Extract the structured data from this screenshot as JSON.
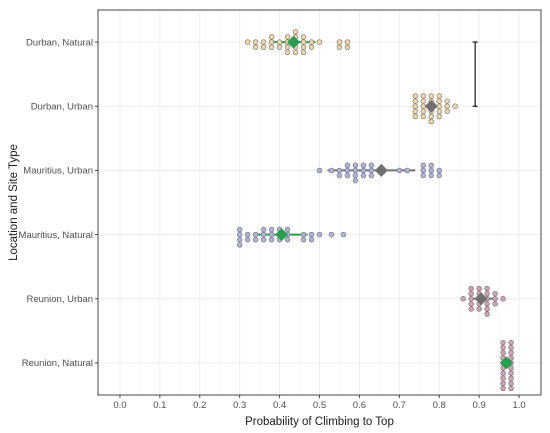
{
  "chart_data": {
    "type": "scatter",
    "title": "",
    "xlabel": "Probability of Climbing to Top",
    "ylabel": "Location and Site Type",
    "xlim": [
      -0.055,
      1.055
    ],
    "x_ticks": [
      "0.0",
      "0.1",
      "0.2",
      "0.3",
      "0.4",
      "0.5",
      "0.6",
      "0.7",
      "0.8",
      "0.9",
      "1.0"
    ],
    "x_tick_values": [
      0.0,
      0.1,
      0.2,
      0.3,
      0.4,
      0.5,
      0.6,
      0.7,
      0.8,
      0.9,
      1.0
    ],
    "categories": [
      "Durban, Natural",
      "Durban, Urban",
      "Mauritius, Urban",
      "Mauritius, Natural",
      "Reunion, Urban",
      "Reunion, Natural"
    ],
    "grid": true,
    "legend": "none",
    "colors": {
      "natural_mean": "#2a9d4f",
      "urban_mean": "#707070",
      "Durban": "#f2d7a8",
      "Mauritius": "#aeb6dd",
      "Reunion": "#d4a0b8",
      "dot_stroke": "#6e6e6e",
      "bracket": "#000000"
    },
    "series": [
      {
        "category": "Durban, Natural",
        "color_key": "Durban",
        "mean": 0.435,
        "ci": [
          0.385,
          0.49
        ],
        "points": [
          [
            0.32,
            0
          ],
          [
            0.34,
            0
          ],
          [
            0.34,
            1
          ],
          [
            0.36,
            0
          ],
          [
            0.36,
            1
          ],
          [
            0.38,
            0
          ],
          [
            0.38,
            -1
          ],
          [
            0.38,
            1
          ],
          [
            0.4,
            0
          ],
          [
            0.4,
            1
          ],
          [
            0.42,
            0
          ],
          [
            0.42,
            -1
          ],
          [
            0.42,
            1
          ],
          [
            0.42,
            2
          ],
          [
            0.44,
            0
          ],
          [
            0.44,
            -1
          ],
          [
            0.44,
            1
          ],
          [
            0.44,
            -2
          ],
          [
            0.44,
            2
          ],
          [
            0.46,
            0
          ],
          [
            0.46,
            -1
          ],
          [
            0.46,
            1
          ],
          [
            0.46,
            2
          ],
          [
            0.48,
            0
          ],
          [
            0.48,
            1
          ],
          [
            0.5,
            0
          ],
          [
            0.55,
            0
          ],
          [
            0.55,
            1
          ],
          [
            0.57,
            0
          ],
          [
            0.57,
            1
          ]
        ]
      },
      {
        "category": "Durban, Urban",
        "color_key": "Durban",
        "mean": 0.78,
        "ci": [
          0.765,
          0.795
        ],
        "points": [
          [
            0.74,
            0
          ],
          [
            0.74,
            -1
          ],
          [
            0.74,
            1
          ],
          [
            0.74,
            -2
          ],
          [
            0.74,
            2
          ],
          [
            0.76,
            0
          ],
          [
            0.76,
            -1
          ],
          [
            0.76,
            1
          ],
          [
            0.76,
            -2
          ],
          [
            0.76,
            2
          ],
          [
            0.78,
            0
          ],
          [
            0.78,
            -1
          ],
          [
            0.78,
            1
          ],
          [
            0.78,
            -2
          ],
          [
            0.78,
            2
          ],
          [
            0.78,
            3
          ],
          [
            0.8,
            0
          ],
          [
            0.8,
            -1
          ],
          [
            0.8,
            1
          ],
          [
            0.8,
            -2
          ],
          [
            0.8,
            2
          ],
          [
            0.82,
            0
          ],
          [
            0.82,
            -1
          ],
          [
            0.82,
            1
          ],
          [
            0.84,
            0
          ]
        ]
      },
      {
        "category": "Mauritius, Urban",
        "color_key": "Mauritius",
        "mean": 0.655,
        "ci": [
          0.52,
          0.74
        ],
        "points": [
          [
            0.5,
            0
          ],
          [
            0.53,
            0
          ],
          [
            0.55,
            0
          ],
          [
            0.55,
            1
          ],
          [
            0.57,
            0
          ],
          [
            0.57,
            -1
          ],
          [
            0.57,
            1
          ],
          [
            0.59,
            0
          ],
          [
            0.59,
            -1
          ],
          [
            0.59,
            1
          ],
          [
            0.59,
            2
          ],
          [
            0.61,
            0
          ],
          [
            0.61,
            -1
          ],
          [
            0.61,
            1
          ],
          [
            0.63,
            0
          ],
          [
            0.63,
            -1
          ],
          [
            0.63,
            1
          ],
          [
            0.7,
            0
          ],
          [
            0.72,
            0
          ],
          [
            0.76,
            0
          ],
          [
            0.76,
            -1
          ],
          [
            0.76,
            1
          ],
          [
            0.78,
            0
          ],
          [
            0.78,
            -1
          ],
          [
            0.78,
            1
          ],
          [
            0.8,
            0
          ],
          [
            0.8,
            1
          ]
        ]
      },
      {
        "category": "Mauritius, Natural",
        "color_key": "Mauritius",
        "mean": 0.405,
        "ci": [
          0.335,
          0.47
        ],
        "points": [
          [
            0.3,
            0
          ],
          [
            0.3,
            -1
          ],
          [
            0.3,
            1
          ],
          [
            0.3,
            2
          ],
          [
            0.32,
            0
          ],
          [
            0.32,
            1
          ],
          [
            0.34,
            0
          ],
          [
            0.34,
            1
          ],
          [
            0.36,
            0
          ],
          [
            0.36,
            -1
          ],
          [
            0.36,
            1
          ],
          [
            0.38,
            0
          ],
          [
            0.38,
            -1
          ],
          [
            0.38,
            1
          ],
          [
            0.4,
            0
          ],
          [
            0.4,
            -1
          ],
          [
            0.4,
            1
          ],
          [
            0.42,
            0
          ],
          [
            0.42,
            -1
          ],
          [
            0.42,
            1
          ],
          [
            0.46,
            0
          ],
          [
            0.46,
            1
          ],
          [
            0.48,
            0
          ],
          [
            0.48,
            1
          ],
          [
            0.5,
            0
          ],
          [
            0.53,
            0
          ],
          [
            0.56,
            0
          ]
        ]
      },
      {
        "category": "Reunion, Urban",
        "color_key": "Reunion",
        "mean": 0.905,
        "ci": [
          0.875,
          0.935
        ],
        "points": [
          [
            0.86,
            0
          ],
          [
            0.88,
            0
          ],
          [
            0.88,
            -1
          ],
          [
            0.88,
            1
          ],
          [
            0.88,
            -2
          ],
          [
            0.88,
            2
          ],
          [
            0.9,
            0
          ],
          [
            0.9,
            -1
          ],
          [
            0.9,
            1
          ],
          [
            0.9,
            -2
          ],
          [
            0.9,
            2
          ],
          [
            0.92,
            0
          ],
          [
            0.92,
            -1
          ],
          [
            0.92,
            1
          ],
          [
            0.92,
            -2
          ],
          [
            0.92,
            2
          ],
          [
            0.92,
            3
          ],
          [
            0.94,
            0
          ],
          [
            0.94,
            -1
          ],
          [
            0.94,
            1
          ],
          [
            0.96,
            0
          ]
        ]
      },
      {
        "category": "Reunion, Natural",
        "color_key": "Reunion",
        "mean": 0.968,
        "ci": [
          0.962,
          0.974
        ],
        "points": [
          [
            0.96,
            0
          ],
          [
            0.96,
            -1
          ],
          [
            0.96,
            1
          ],
          [
            0.96,
            -2
          ],
          [
            0.96,
            2
          ],
          [
            0.96,
            -3
          ],
          [
            0.96,
            3
          ],
          [
            0.96,
            -4
          ],
          [
            0.96,
            4
          ],
          [
            0.96,
            5
          ],
          [
            0.98,
            0
          ],
          [
            0.98,
            -1
          ],
          [
            0.98,
            1
          ],
          [
            0.98,
            -2
          ],
          [
            0.98,
            2
          ],
          [
            0.98,
            -3
          ],
          [
            0.98,
            3
          ],
          [
            0.98,
            -4
          ],
          [
            0.98,
            4
          ],
          [
            0.98,
            5
          ]
        ]
      }
    ],
    "annotations": [
      {
        "type": "bracket",
        "x": 0.89,
        "from": "Durban, Natural",
        "to": "Durban, Urban"
      }
    ]
  }
}
